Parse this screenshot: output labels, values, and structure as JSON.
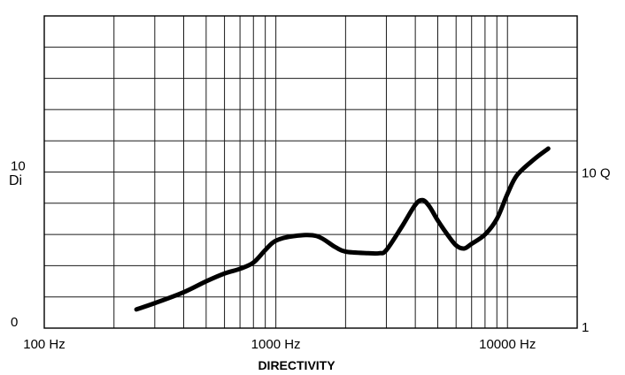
{
  "chart_data": {
    "type": "line",
    "title": "DIRECTIVITY",
    "xscale": "log",
    "xlim": [
      100,
      20000
    ],
    "x_ticks": [
      {
        "value": 100,
        "label": "100 Hz"
      },
      {
        "value": 1000,
        "label": "1000 Hz"
      },
      {
        "value": 10000,
        "label": "10000 Hz"
      }
    ],
    "left_axis": {
      "label": "Di",
      "ylim": [
        0,
        20
      ],
      "ticks": [
        {
          "value": 0,
          "label": "0"
        },
        {
          "value": 10,
          "label": "10"
        }
      ]
    },
    "right_axis": {
      "ticks": [
        {
          "value": 1,
          "label": "1"
        },
        {
          "value": 10,
          "label": "10 Q"
        }
      ]
    },
    "grid": true,
    "series": [
      {
        "x": [
          250,
          300,
          400,
          500,
          600,
          700,
          800,
          900,
          1000,
          1200,
          1500,
          1800,
          2000,
          2500,
          2800,
          3000,
          3500,
          4000,
          4300,
          4600,
          5000,
          5500,
          6000,
          6500,
          7000,
          8000,
          9000,
          10000,
          11000,
          13000,
          15000
        ],
        "y": [
          1.2,
          1.6,
          2.3,
          3.0,
          3.5,
          3.8,
          4.2,
          5.0,
          5.6,
          5.9,
          5.9,
          5.2,
          4.9,
          4.8,
          4.8,
          5.0,
          6.5,
          7.9,
          8.2,
          7.8,
          6.9,
          6.0,
          5.3,
          5.1,
          5.4,
          6.0,
          7.0,
          8.6,
          9.8,
          10.8,
          11.5
        ]
      }
    ]
  }
}
